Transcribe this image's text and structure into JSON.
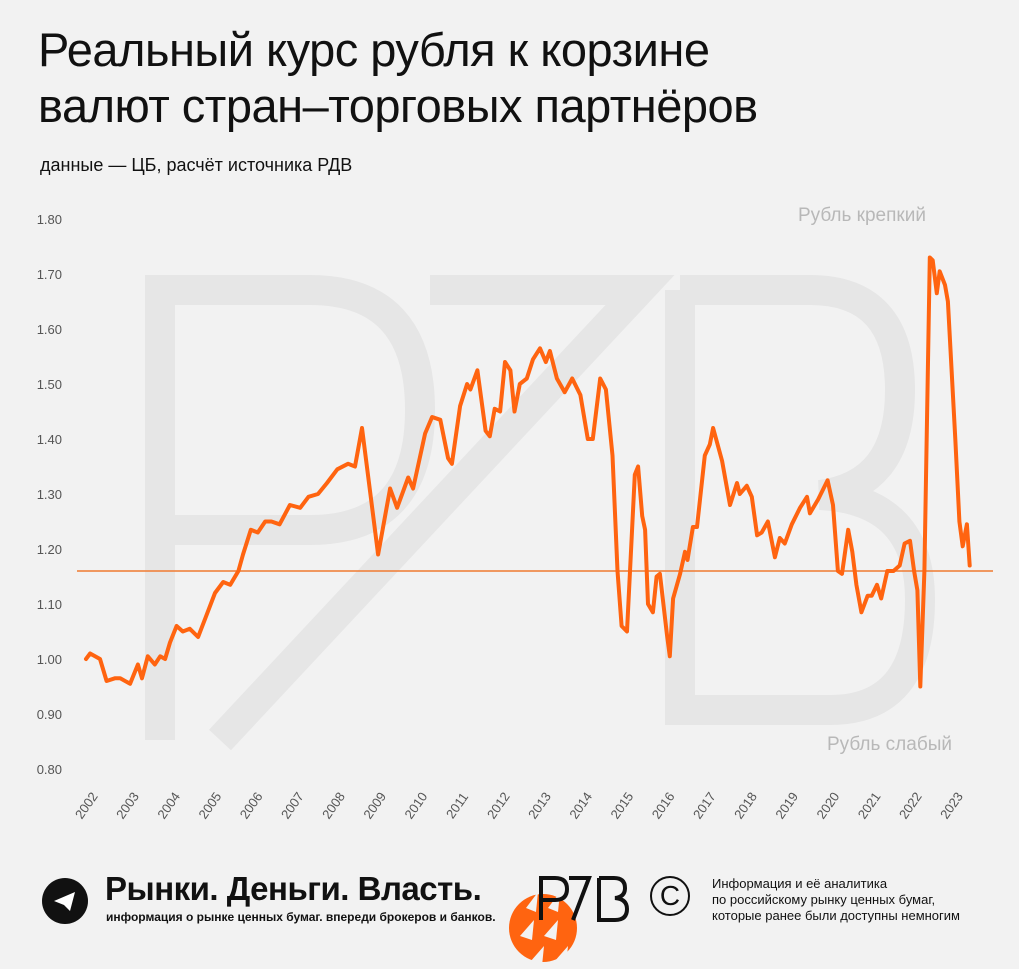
{
  "header": {
    "title_line1": "Реальный курс рубля к корзине",
    "title_line2": "валют стран–торговых партнёров",
    "subtitle": "данные — ЦБ, расчёт источника РДВ"
  },
  "watermark": "PZB",
  "colors": {
    "line": "#ff6410",
    "reference": "#f07a30",
    "background": "#f2f2f2",
    "annotation": "#b8b8b8"
  },
  "chart_data": {
    "type": "line",
    "title": "Реальный курс рубля к корзине валют стран–торговых партнёров",
    "ylim": [
      0.8,
      1.8
    ],
    "xlim": [
      2002,
      2023.5
    ],
    "yticks": [
      "1.80",
      "1.70",
      "1.60",
      "1.50",
      "1.40",
      "1.30",
      "1.20",
      "1.10",
      "1.00",
      "0.90",
      "0.80"
    ],
    "xticks": [
      "2002",
      "2003",
      "2004",
      "2005",
      "2006",
      "2007",
      "2008",
      "2009",
      "2010",
      "2011",
      "2012",
      "2013",
      "2014",
      "2015",
      "2016",
      "2017",
      "2018",
      "2019",
      "2020",
      "2021",
      "2022",
      "2023"
    ],
    "grid": false,
    "reference_line": 1.16,
    "annotations": {
      "top": "Рубль крепкий",
      "bottom": "Рубль слабый"
    },
    "points": [
      [
        2002.0,
        1.0
      ],
      [
        2002.1,
        1.01
      ],
      [
        2002.34,
        1.0
      ],
      [
        2002.5,
        0.96
      ],
      [
        2002.7,
        0.965
      ],
      [
        2002.83,
        0.965
      ],
      [
        2003.07,
        0.955
      ],
      [
        2003.26,
        0.99
      ],
      [
        2003.36,
        0.965
      ],
      [
        2003.5,
        1.005
      ],
      [
        2003.67,
        0.99
      ],
      [
        2003.8,
        1.005
      ],
      [
        2003.92,
        1.0
      ],
      [
        2004.04,
        1.03
      ],
      [
        2004.2,
        1.06
      ],
      [
        2004.35,
        1.05
      ],
      [
        2004.52,
        1.055
      ],
      [
        2004.72,
        1.04
      ],
      [
        2004.9,
        1.075
      ],
      [
        2005.13,
        1.12
      ],
      [
        2005.33,
        1.14
      ],
      [
        2005.5,
        1.135
      ],
      [
        2005.7,
        1.16
      ],
      [
        2005.81,
        1.19
      ],
      [
        2006.0,
        1.235
      ],
      [
        2006.17,
        1.23
      ],
      [
        2006.35,
        1.25
      ],
      [
        2006.5,
        1.25
      ],
      [
        2006.7,
        1.245
      ],
      [
        2006.95,
        1.28
      ],
      [
        2007.2,
        1.275
      ],
      [
        2007.4,
        1.295
      ],
      [
        2007.63,
        1.3
      ],
      [
        2007.85,
        1.32
      ],
      [
        2008.1,
        1.345
      ],
      [
        2008.36,
        1.355
      ],
      [
        2008.53,
        1.35
      ],
      [
        2008.7,
        1.42
      ],
      [
        2009.09,
        1.19
      ],
      [
        2009.38,
        1.31
      ],
      [
        2009.55,
        1.275
      ],
      [
        2009.82,
        1.33
      ],
      [
        2009.94,
        1.31
      ],
      [
        2010.23,
        1.41
      ],
      [
        2010.4,
        1.44
      ],
      [
        2010.6,
        1.435
      ],
      [
        2010.79,
        1.365
      ],
      [
        2010.88,
        1.355
      ],
      [
        2011.08,
        1.46
      ],
      [
        2011.25,
        1.5
      ],
      [
        2011.33,
        1.49
      ],
      [
        2011.5,
        1.525
      ],
      [
        2011.7,
        1.415
      ],
      [
        2011.8,
        1.405
      ],
      [
        2011.92,
        1.455
      ],
      [
        2012.05,
        1.45
      ],
      [
        2012.17,
        1.54
      ],
      [
        2012.3,
        1.525
      ],
      [
        2012.4,
        1.45
      ],
      [
        2012.53,
        1.5
      ],
      [
        2012.7,
        1.51
      ],
      [
        2012.85,
        1.545
      ],
      [
        2013.02,
        1.565
      ],
      [
        2013.16,
        1.54
      ],
      [
        2013.26,
        1.56
      ],
      [
        2013.43,
        1.51
      ],
      [
        2013.62,
        1.485
      ],
      [
        2013.8,
        1.51
      ],
      [
        2014.0,
        1.48
      ],
      [
        2014.18,
        1.4
      ],
      [
        2014.3,
        1.4
      ],
      [
        2014.48,
        1.51
      ],
      [
        2014.62,
        1.49
      ],
      [
        2014.78,
        1.37
      ],
      [
        2014.9,
        1.16
      ],
      [
        2015.0,
        1.06
      ],
      [
        2015.13,
        1.05
      ],
      [
        2015.32,
        1.335
      ],
      [
        2015.4,
        1.35
      ],
      [
        2015.5,
        1.26
      ],
      [
        2015.57,
        1.235
      ],
      [
        2015.64,
        1.1
      ],
      [
        2015.76,
        1.085
      ],
      [
        2015.85,
        1.15
      ],
      [
        2015.93,
        1.155
      ],
      [
        2016.1,
        1.045
      ],
      [
        2016.17,
        1.005
      ],
      [
        2016.25,
        1.11
      ],
      [
        2016.42,
        1.155
      ],
      [
        2016.54,
        1.195
      ],
      [
        2016.6,
        1.18
      ],
      [
        2016.73,
        1.24
      ],
      [
        2016.83,
        1.24
      ],
      [
        2017.02,
        1.37
      ],
      [
        2017.14,
        1.39
      ],
      [
        2017.22,
        1.42
      ],
      [
        2017.44,
        1.36
      ],
      [
        2017.63,
        1.28
      ],
      [
        2017.8,
        1.32
      ],
      [
        2017.87,
        1.3
      ],
      [
        2018.04,
        1.315
      ],
      [
        2018.16,
        1.295
      ],
      [
        2018.29,
        1.225
      ],
      [
        2018.4,
        1.23
      ],
      [
        2018.55,
        1.25
      ],
      [
        2018.72,
        1.185
      ],
      [
        2018.84,
        1.22
      ],
      [
        2018.96,
        1.21
      ],
      [
        2019.13,
        1.245
      ],
      [
        2019.33,
        1.275
      ],
      [
        2019.5,
        1.295
      ],
      [
        2019.57,
        1.265
      ],
      [
        2019.77,
        1.29
      ],
      [
        2020.0,
        1.325
      ],
      [
        2020.13,
        1.28
      ],
      [
        2020.25,
        1.16
      ],
      [
        2020.35,
        1.155
      ],
      [
        2020.5,
        1.235
      ],
      [
        2020.6,
        1.195
      ],
      [
        2020.7,
        1.135
      ],
      [
        2020.82,
        1.085
      ],
      [
        2020.97,
        1.115
      ],
      [
        2021.07,
        1.115
      ],
      [
        2021.2,
        1.135
      ],
      [
        2021.3,
        1.11
      ],
      [
        2021.45,
        1.16
      ],
      [
        2021.6,
        1.16
      ],
      [
        2021.75,
        1.17
      ],
      [
        2021.87,
        1.21
      ],
      [
        2022.0,
        1.215
      ],
      [
        2022.1,
        1.16
      ],
      [
        2022.18,
        1.125
      ],
      [
        2022.25,
        0.95
      ],
      [
        2022.35,
        1.16
      ],
      [
        2022.48,
        1.73
      ],
      [
        2022.55,
        1.725
      ],
      [
        2022.65,
        1.665
      ],
      [
        2022.72,
        1.705
      ],
      [
        2022.85,
        1.68
      ],
      [
        2022.92,
        1.65
      ],
      [
        2023.1,
        1.4
      ],
      [
        2023.2,
        1.25
      ],
      [
        2023.28,
        1.205
      ],
      [
        2023.38,
        1.245
      ],
      [
        2023.45,
        1.17
      ]
    ]
  },
  "footer": {
    "telegram_icon": "paper-plane-icon",
    "brand": "Рынки. Деньги. Власть.",
    "brand_tagline": "информация о рынке ценных бумаг. впереди брокеров и банков.",
    "logo": "PZB",
    "copyright_symbol": "C",
    "info_line1": "Информация и её аналитика",
    "info_line2": "по российскому рынку ценных бумаг,",
    "info_line3": "которые ранее были доступны немногим"
  }
}
